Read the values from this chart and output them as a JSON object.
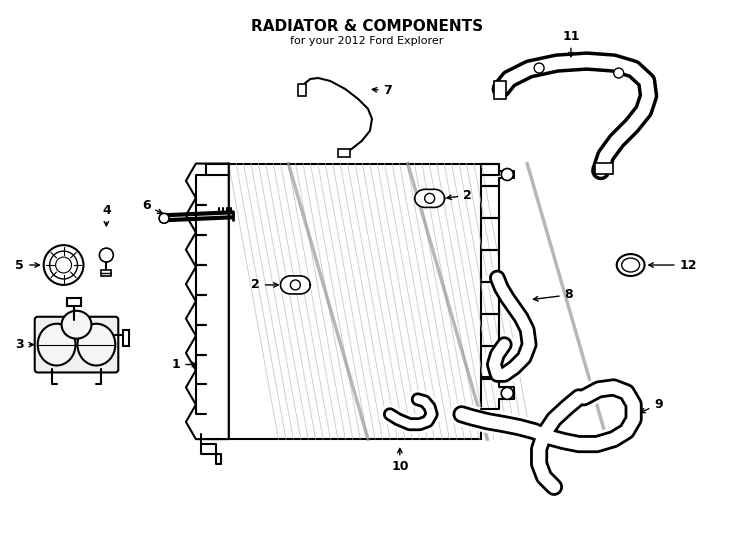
{
  "title": "RADIATOR & COMPONENTS",
  "subtitle": "for your 2012 Ford Explorer",
  "bg_color": "#ffffff",
  "lc": "#000000",
  "fig_width": 7.34,
  "fig_height": 5.4,
  "dpi": 100
}
